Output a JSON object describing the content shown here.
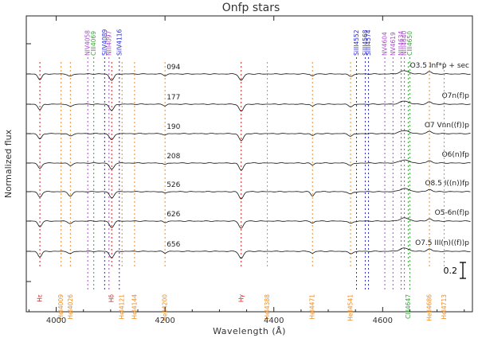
{
  "chart_data": {
    "type": "line",
    "title": "Onfp stars",
    "xlabel": "Wavelength (Å)",
    "ylabel": "Normalized flux",
    "xlim": [
      3945,
      4765
    ],
    "x_ticks": [
      4000,
      4200,
      4400,
      4600
    ],
    "x_tick_labels": [
      "4000",
      "4200",
      "4400",
      "4600"
    ],
    "grid": false,
    "scale_bar_label": "0.2",
    "line_markers": [
      {
        "label": "NIV4058",
        "wavelength": 4058,
        "color": "#a64dc8",
        "position": "top"
      },
      {
        "label": "CIII4069",
        "wavelength": 4069,
        "color": "#3aa63a",
        "position": "top"
      },
      {
        "label": "SiIV4089",
        "wavelength": 4089,
        "color": "#2b2bd0",
        "position": "top"
      },
      {
        "label": "NIII4097",
        "wavelength": 4097,
        "color": "#a64dc8",
        "position": "top"
      },
      {
        "label": "SiIV4116",
        "wavelength": 4116,
        "color": "#2b2bd0",
        "position": "top"
      },
      {
        "label": "SiIII4552",
        "wavelength": 4552,
        "color": "#2b2bd0",
        "position": "top"
      },
      {
        "label": "SiIII4568",
        "wavelength": 4568,
        "color": "#2b2bd0",
        "position": "top"
      },
      {
        "label": "SiIII4574",
        "wavelength": 4574,
        "color": "#2b2bd0",
        "position": "top"
      },
      {
        "label": "NV4604",
        "wavelength": 4604,
        "color": "#a64dc8",
        "position": "top"
      },
      {
        "label": "NV4619",
        "wavelength": 4619,
        "color": "#a64dc8",
        "position": "top"
      },
      {
        "label": "NIII4634",
        "wavelength": 4634,
        "color": "#a64dc8",
        "position": "top"
      },
      {
        "label": "NIII4640",
        "wavelength": 4640,
        "color": "#a64dc8",
        "position": "top"
      },
      {
        "label": "CIII4650",
        "wavelength": 4650,
        "color": "#3aa63a",
        "position": "top"
      },
      {
        "label": "Hε",
        "wavelength": 3970,
        "color": "#d81b1b",
        "position": "bottom"
      },
      {
        "label": "HeI4009",
        "wavelength": 4009,
        "color": "#f08a1e",
        "position": "bottom"
      },
      {
        "label": "HeI4026",
        "wavelength": 4026,
        "color": "#f08a1e",
        "position": "bottom"
      },
      {
        "label": "Hδ",
        "wavelength": 4102,
        "color": "#d81b1b",
        "position": "bottom"
      },
      {
        "label": "HeI4121",
        "wavelength": 4121,
        "color": "#f08a1e",
        "position": "bottom"
      },
      {
        "label": "HeI4144",
        "wavelength": 4144,
        "color": "#f08a1e",
        "position": "bottom"
      },
      {
        "label": "HeII4200",
        "wavelength": 4200,
        "color": "#f08a1e",
        "position": "bottom"
      },
      {
        "label": "Hγ",
        "wavelength": 4340,
        "color": "#d81b1b",
        "position": "bottom"
      },
      {
        "label": "HeI4388",
        "wavelength": 4388,
        "color": "#f08a1e",
        "position": "bottom"
      },
      {
        "label": "HeI4471",
        "wavelength": 4471,
        "color": "#f08a1e",
        "position": "bottom"
      },
      {
        "label": "HeII4541",
        "wavelength": 4541,
        "color": "#f08a1e",
        "position": "bottom"
      },
      {
        "label": "CIII4647",
        "wavelength": 4647,
        "color": "#3aa63a",
        "position": "bottom"
      },
      {
        "label": "HeII4686",
        "wavelength": 4686,
        "color": "#f08a1e",
        "position": "bottom"
      },
      {
        "label": "HeI4713",
        "wavelength": 4713,
        "color": "#f08a1e",
        "position": "bottom"
      }
    ],
    "series": [
      {
        "name": "094",
        "spectral_type": "O3.5 Inf*p + sec"
      },
      {
        "name": "177",
        "spectral_type": "O7n(f)p"
      },
      {
        "name": "190",
        "spectral_type": "O7 Vnn((f))p"
      },
      {
        "name": "208",
        "spectral_type": "O6(n)fp"
      },
      {
        "name": "526",
        "spectral_type": "O8.5 I((n))fp"
      },
      {
        "name": "626",
        "spectral_type": "O5-6n(f)p"
      },
      {
        "name": "656",
        "spectral_type": "O7.5 III(n)((f))p"
      }
    ]
  }
}
